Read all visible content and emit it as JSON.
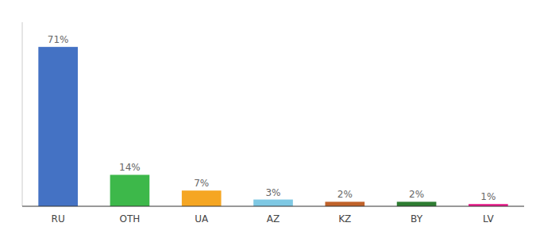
{
  "chart_data": {
    "type": "bar",
    "categories": [
      "RU",
      "OTH",
      "UA",
      "AZ",
      "KZ",
      "BY",
      "LV"
    ],
    "values": [
      71,
      14,
      7,
      3,
      2,
      2,
      1
    ],
    "value_labels": [
      "71%",
      "14%",
      "7%",
      "3%",
      "2%",
      "2%",
      "1%"
    ],
    "colors": [
      "#4472c4",
      "#3db84a",
      "#f5a623",
      "#7ec8e3",
      "#c0622a",
      "#2e7d32",
      "#e91e8c"
    ],
    "ylim": [
      0,
      82
    ],
    "grid": false,
    "tick_labels": "x"
  }
}
